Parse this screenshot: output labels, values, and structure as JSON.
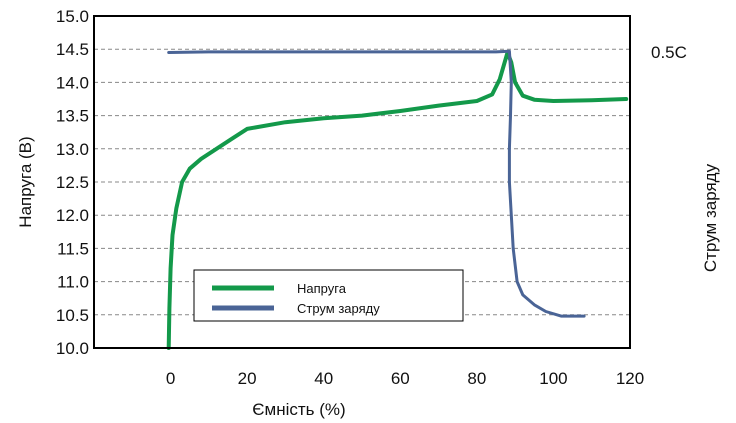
{
  "chart_data": {
    "type": "line",
    "xlabel": "Ємність (%)",
    "ylabel": "Напруга (В)",
    "y2label": "Струм заряду",
    "right_annotation": "0.5C",
    "xlim": [
      -20,
      120
    ],
    "ylim": [
      10.0,
      15.0
    ],
    "x_ticks": [
      "0",
      "20",
      "40",
      "60",
      "80",
      "100",
      "120"
    ],
    "y_ticks": [
      "10.0",
      "10.5",
      "11.0",
      "11.5",
      "12.0",
      "12.5",
      "13.0",
      "13.5",
      "14.0",
      "14.5",
      "15.0"
    ],
    "grid": "dashed horizontal",
    "legend_position": "bottom-left inside",
    "colors": {
      "voltage": "#13994a",
      "current": "#4a6496",
      "grid": "#888888",
      "axis": "#000000"
    },
    "series": [
      {
        "name": "Напруга",
        "points": [
          [
            -0.5,
            10.0
          ],
          [
            -0.3,
            10.6
          ],
          [
            0,
            11.2
          ],
          [
            0.5,
            11.7
          ],
          [
            1.5,
            12.1
          ],
          [
            3,
            12.5
          ],
          [
            5,
            12.7
          ],
          [
            8,
            12.85
          ],
          [
            12,
            13.0
          ],
          [
            16,
            13.15
          ],
          [
            20,
            13.3
          ],
          [
            30,
            13.4
          ],
          [
            40,
            13.46
          ],
          [
            50,
            13.5
          ],
          [
            60,
            13.57
          ],
          [
            70,
            13.65
          ],
          [
            80,
            13.72
          ],
          [
            84,
            13.82
          ],
          [
            86,
            14.05
          ],
          [
            88,
            14.45
          ],
          [
            89,
            14.3
          ],
          [
            90,
            14.0
          ],
          [
            92,
            13.8
          ],
          [
            95,
            13.74
          ],
          [
            100,
            13.72
          ],
          [
            110,
            13.73
          ],
          [
            119,
            13.75
          ]
        ]
      },
      {
        "name": "Струм заряду",
        "points": [
          [
            -0.5,
            14.45
          ],
          [
            10,
            14.46
          ],
          [
            30,
            14.46
          ],
          [
            50,
            14.46
          ],
          [
            70,
            14.46
          ],
          [
            85,
            14.46
          ],
          [
            88.5,
            14.47
          ],
          [
            89,
            14.0
          ],
          [
            88.8,
            13.5
          ],
          [
            88.5,
            13.0
          ],
          [
            88.5,
            12.5
          ],
          [
            89,
            12.0
          ],
          [
            89.5,
            11.5
          ],
          [
            90.5,
            11.0
          ],
          [
            92,
            10.8
          ],
          [
            95,
            10.65
          ],
          [
            98,
            10.55
          ],
          [
            102,
            10.48
          ],
          [
            108,
            10.48
          ]
        ]
      }
    ]
  }
}
